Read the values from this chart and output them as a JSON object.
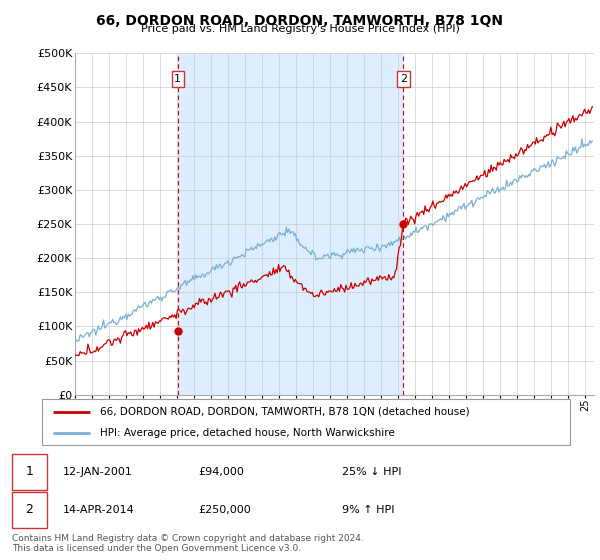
{
  "title": "66, DORDON ROAD, DORDON, TAMWORTH, B78 1QN",
  "subtitle": "Price paid vs. HM Land Registry's House Price Index (HPI)",
  "legend_line1": "66, DORDON ROAD, DORDON, TAMWORTH, B78 1QN (detached house)",
  "legend_line2": "HPI: Average price, detached house, North Warwickshire",
  "table_row1_date": "12-JAN-2001",
  "table_row1_price": "£94,000",
  "table_row1_hpi": "25% ↓ HPI",
  "table_row2_date": "14-APR-2014",
  "table_row2_price": "£250,000",
  "table_row2_hpi": "9% ↑ HPI",
  "footer": "Contains HM Land Registry data © Crown copyright and database right 2024.\nThis data is licensed under the Open Government Licence v3.0.",
  "sale1_year": 2001.04,
  "sale1_price": 94000,
  "sale2_year": 2014.29,
  "sale2_price": 250000,
  "red_color": "#cc0000",
  "blue_color": "#7bafd4",
  "shade_color": "#ddeeff",
  "marker_box_color": "#cc3333",
  "ylim_min": 0,
  "ylim_max": 500000,
  "xlim_min": 1995.0,
  "xlim_max": 2025.5,
  "background_color": "#ffffff",
  "grid_color": "#cccccc"
}
